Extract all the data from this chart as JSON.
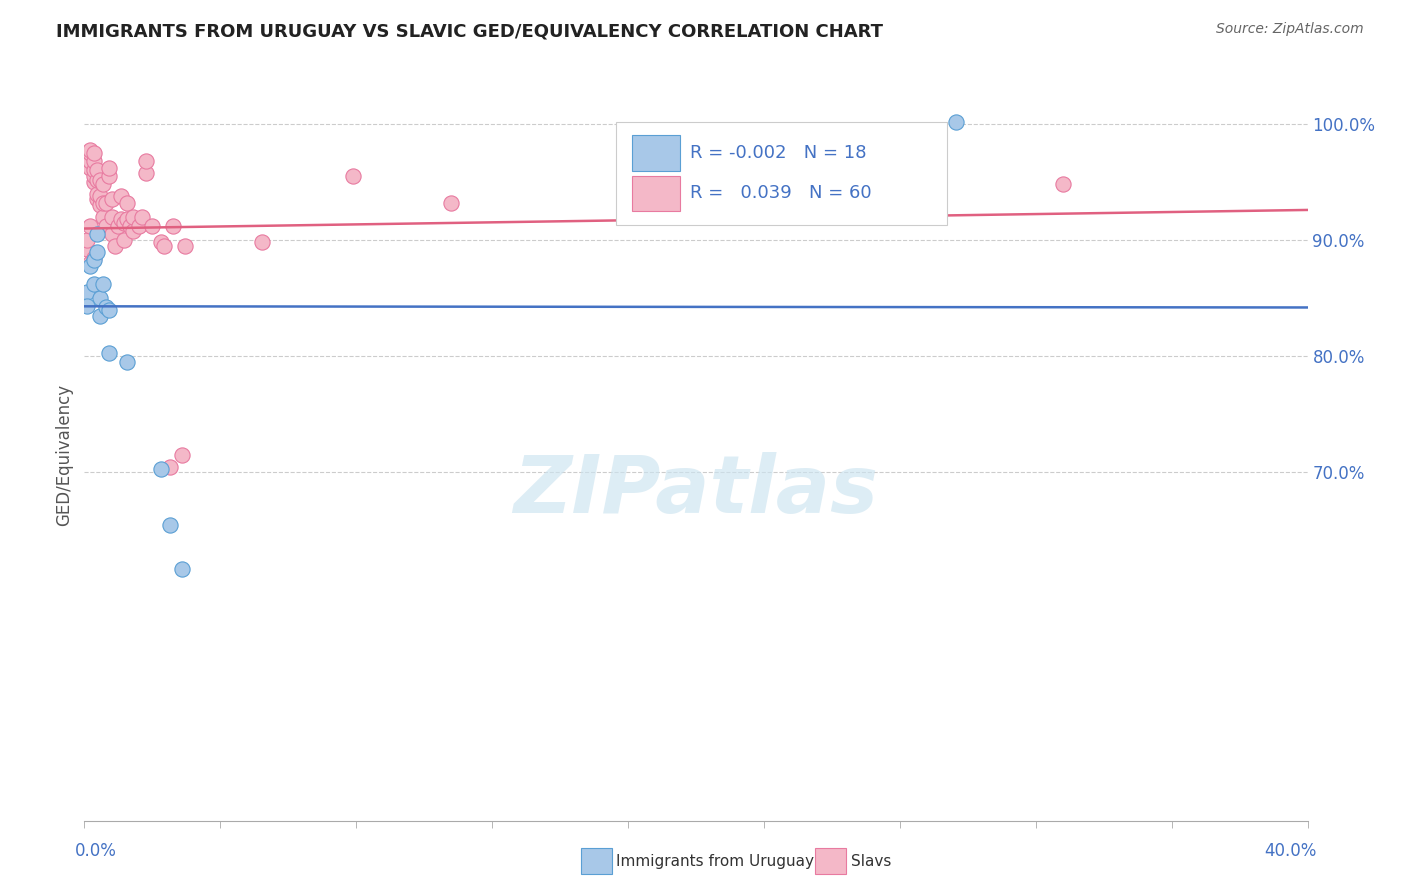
{
  "title": "IMMIGRANTS FROM URUGUAY VS SLAVIC GED/EQUIVALENCY CORRELATION CHART",
  "source": "Source: ZipAtlas.com",
  "ylabel": "GED/Equivalency",
  "blue_R": "-0.002",
  "blue_N": "18",
  "pink_R": "0.039",
  "pink_N": "60",
  "blue_color": "#a8c8e8",
  "pink_color": "#f4b8c8",
  "blue_edge_color": "#5a9fd4",
  "pink_edge_color": "#e87aa0",
  "blue_line_color": "#4472c4",
  "pink_line_color": "#e06080",
  "legend_label_blue": "Immigrants from Uruguay",
  "legend_label_pink": "Slavs",
  "xmin": 0.0,
  "xmax": 0.4,
  "ymin": 0.4,
  "ymax": 1.03,
  "yticks": [
    1.0,
    0.9,
    0.8,
    0.7
  ],
  "ytick_labels": [
    "100.0%",
    "90.0%",
    "80.0%",
    "70.0%"
  ],
  "blue_scatter_x": [
    0.001,
    0.002,
    0.003,
    0.003,
    0.004,
    0.004,
    0.005,
    0.005,
    0.006,
    0.007,
    0.008,
    0.008,
    0.014,
    0.025,
    0.028,
    0.032,
    0.285,
    0.001
  ],
  "blue_scatter_y": [
    0.855,
    0.878,
    0.862,
    0.883,
    0.89,
    0.905,
    0.835,
    0.85,
    0.862,
    0.842,
    0.84,
    0.803,
    0.795,
    0.703,
    0.655,
    0.617,
    1.002,
    0.843
  ],
  "pink_scatter_x": [
    0.001,
    0.001,
    0.002,
    0.002,
    0.002,
    0.002,
    0.003,
    0.003,
    0.003,
    0.003,
    0.003,
    0.004,
    0.004,
    0.004,
    0.004,
    0.005,
    0.005,
    0.005,
    0.006,
    0.006,
    0.006,
    0.007,
    0.007,
    0.008,
    0.008,
    0.009,
    0.009,
    0.009,
    0.01,
    0.011,
    0.012,
    0.012,
    0.013,
    0.013,
    0.014,
    0.014,
    0.015,
    0.016,
    0.016,
    0.018,
    0.019,
    0.02,
    0.02,
    0.022,
    0.025,
    0.026,
    0.028,
    0.029,
    0.032,
    0.033,
    0.058,
    0.088,
    0.12,
    0.19,
    0.32,
    0.001,
    0.001,
    0.002,
    0.002,
    0.003
  ],
  "pink_scatter_y": [
    0.972,
    0.975,
    0.962,
    0.968,
    0.975,
    0.978,
    0.95,
    0.955,
    0.96,
    0.968,
    0.975,
    0.935,
    0.94,
    0.952,
    0.96,
    0.93,
    0.938,
    0.952,
    0.92,
    0.932,
    0.948,
    0.912,
    0.932,
    0.955,
    0.962,
    0.905,
    0.92,
    0.935,
    0.895,
    0.912,
    0.918,
    0.938,
    0.915,
    0.9,
    0.918,
    0.932,
    0.912,
    0.908,
    0.92,
    0.912,
    0.92,
    0.958,
    0.968,
    0.912,
    0.898,
    0.895,
    0.705,
    0.912,
    0.715,
    0.895,
    0.898,
    0.955,
    0.932,
    0.948,
    0.948,
    0.892,
    0.9,
    0.912,
    0.88,
    0.885
  ],
  "blue_trend_x": [
    0.0,
    0.4
  ],
  "blue_trend_y": [
    0.843,
    0.842
  ],
  "pink_trend_x": [
    0.0,
    0.4
  ],
  "pink_trend_y": [
    0.91,
    0.926
  ],
  "watermark": "ZIPatlas",
  "background_color": "#ffffff",
  "grid_color": "#cccccc",
  "title_color": "#222222",
  "axis_color": "#4472c4"
}
